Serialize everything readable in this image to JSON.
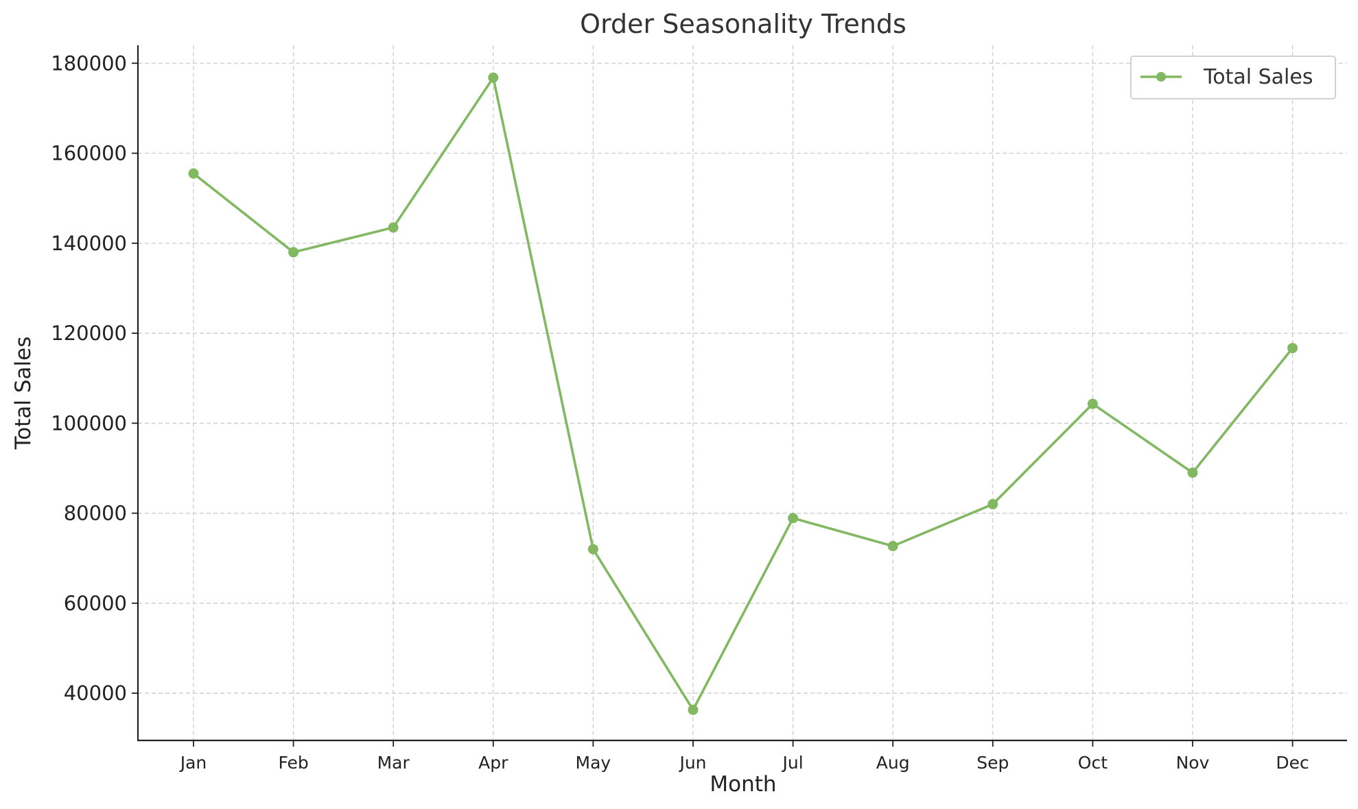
{
  "chart_data": {
    "type": "line",
    "title": "Order Seasonality Trends",
    "xlabel": "Month",
    "ylabel": "Total Sales",
    "categories": [
      "Jan",
      "Feb",
      "Mar",
      "Apr",
      "May",
      "Jun",
      "Jul",
      "Aug",
      "Sep",
      "Oct",
      "Nov",
      "Dec"
    ],
    "series": [
      {
        "name": "Total Sales",
        "color": "#82b862",
        "values": [
          155500,
          138000,
          143500,
          176800,
          72000,
          36300,
          78900,
          72700,
          82000,
          104300,
          89000,
          116700
        ]
      }
    ],
    "ylim": [
      29500,
      184000
    ],
    "yticks": [
      40000,
      60000,
      80000,
      100000,
      120000,
      140000,
      160000,
      180000
    ],
    "ytick_labels": [
      "40000",
      "60000",
      "80000",
      "100000",
      "120000",
      "140000",
      "160000",
      "180000"
    ],
    "grid": true,
    "legend": "top-right"
  }
}
